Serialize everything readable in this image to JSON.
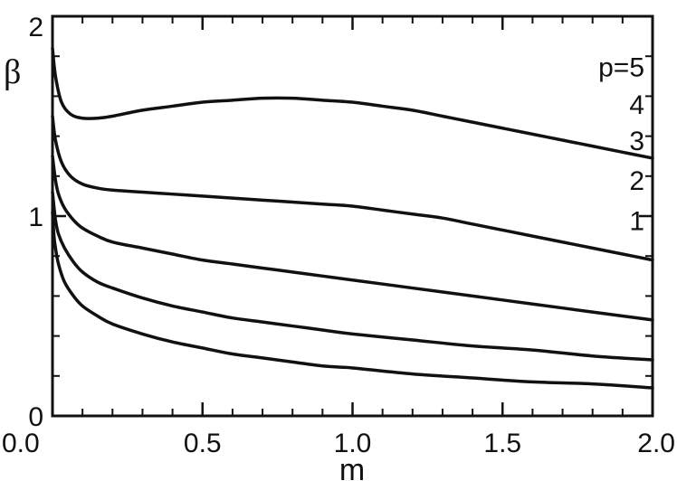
{
  "chart_data": {
    "type": "line",
    "title": "",
    "xlabel": "m",
    "ylabel": "β",
    "xlim": [
      0,
      2
    ],
    "ylim": [
      0,
      2
    ],
    "grid": false,
    "x_ticks": [
      {
        "value": 0,
        "label": "0.0"
      },
      {
        "value": 0.5,
        "label": "0.5"
      },
      {
        "value": 1.0,
        "label": "1.0"
      },
      {
        "value": 1.5,
        "label": "1.5"
      },
      {
        "value": 2.0,
        "label": "2.0"
      }
    ],
    "y_ticks": [
      {
        "value": 0,
        "label": "0"
      },
      {
        "value": 1,
        "label": "1"
      },
      {
        "value": 2,
        "label": "2"
      }
    ],
    "x_minor_step": 0.1,
    "y_minor_step": 0.2,
    "series": [
      {
        "name": "p=5",
        "label_value": 1.75,
        "x": [
          0.0,
          0.01,
          0.03,
          0.06,
          0.1,
          0.15,
          0.2,
          0.3,
          0.4,
          0.5,
          0.6,
          0.7,
          0.8,
          0.9,
          1.0,
          1.1,
          1.2,
          1.3,
          1.4,
          1.5,
          1.6,
          1.7,
          1.8,
          1.9,
          2.0
        ],
        "y": [
          1.84,
          1.7,
          1.57,
          1.51,
          1.49,
          1.49,
          1.5,
          1.53,
          1.55,
          1.57,
          1.58,
          1.59,
          1.59,
          1.58,
          1.57,
          1.55,
          1.53,
          1.5,
          1.47,
          1.44,
          1.41,
          1.38,
          1.35,
          1.32,
          1.29
        ]
      },
      {
        "name": "4",
        "label_value": 1.56,
        "x": [
          0.0,
          0.01,
          0.03,
          0.06,
          0.1,
          0.15,
          0.2,
          0.3,
          0.4,
          0.5,
          0.6,
          0.7,
          0.8,
          0.9,
          1.0,
          1.1,
          1.2,
          1.3,
          1.4,
          1.5,
          1.6,
          1.7,
          1.8,
          1.9,
          2.0
        ],
        "y": [
          1.5,
          1.38,
          1.27,
          1.2,
          1.16,
          1.14,
          1.13,
          1.12,
          1.11,
          1.1,
          1.09,
          1.08,
          1.07,
          1.06,
          1.05,
          1.03,
          1.01,
          0.99,
          0.96,
          0.93,
          0.9,
          0.87,
          0.84,
          0.81,
          0.78
        ]
      },
      {
        "name": "3",
        "label_value": 1.38,
        "x": [
          0.0,
          0.01,
          0.02,
          0.04,
          0.07,
          0.1,
          0.15,
          0.2,
          0.3,
          0.4,
          0.5,
          0.6,
          0.7,
          0.8,
          0.9,
          1.0,
          1.2,
          1.4,
          1.6,
          1.8,
          2.0
        ],
        "y": [
          1.3,
          1.18,
          1.11,
          1.04,
          0.98,
          0.94,
          0.9,
          0.87,
          0.84,
          0.81,
          0.78,
          0.76,
          0.74,
          0.72,
          0.7,
          0.68,
          0.64,
          0.6,
          0.56,
          0.52,
          0.48
        ]
      },
      {
        "name": "2",
        "label_value": 1.18,
        "x": [
          0.0,
          0.01,
          0.02,
          0.04,
          0.07,
          0.1,
          0.15,
          0.2,
          0.3,
          0.4,
          0.5,
          0.6,
          0.7,
          0.8,
          0.9,
          1.0,
          1.2,
          1.4,
          1.6,
          1.8,
          2.0
        ],
        "y": [
          1.12,
          0.98,
          0.91,
          0.84,
          0.77,
          0.72,
          0.67,
          0.64,
          0.59,
          0.55,
          0.52,
          0.49,
          0.47,
          0.45,
          0.43,
          0.41,
          0.38,
          0.35,
          0.33,
          0.3,
          0.28
        ]
      },
      {
        "name": "1",
        "label_value": 0.98,
        "x": [
          0.0,
          0.005,
          0.01,
          0.02,
          0.04,
          0.07,
          0.1,
          0.15,
          0.2,
          0.3,
          0.4,
          0.5,
          0.6,
          0.7,
          0.8,
          0.9,
          1.0,
          1.2,
          1.4,
          1.6,
          1.8,
          2.0
        ],
        "y": [
          1.02,
          0.9,
          0.84,
          0.76,
          0.67,
          0.6,
          0.55,
          0.5,
          0.46,
          0.41,
          0.37,
          0.34,
          0.31,
          0.29,
          0.27,
          0.25,
          0.24,
          0.21,
          0.19,
          0.17,
          0.16,
          0.14
        ]
      }
    ]
  }
}
